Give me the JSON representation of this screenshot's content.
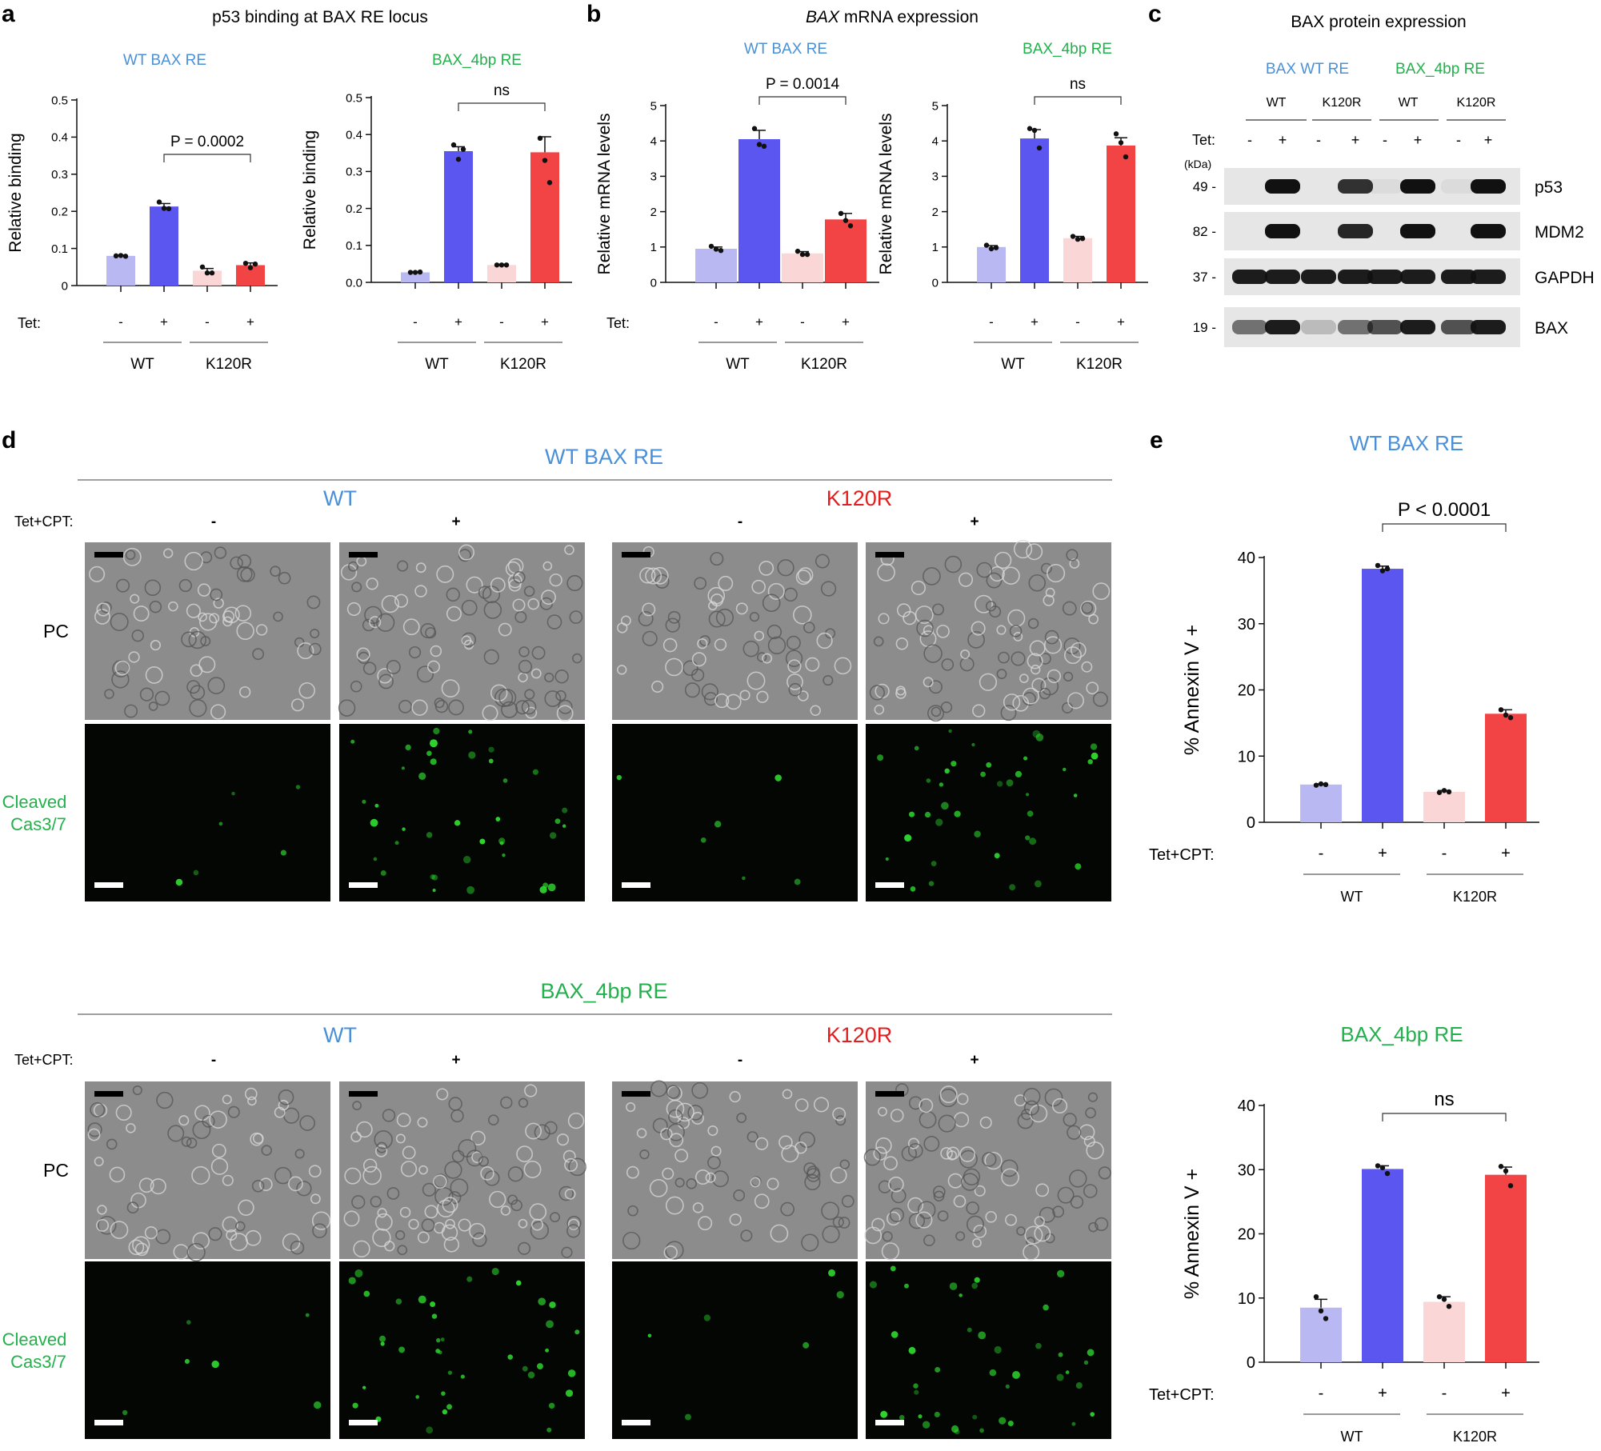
{
  "colors": {
    "blue": "#4a90d9",
    "green": "#22b14c",
    "red": "#e02020",
    "wt_bar": "#5b56f0",
    "wt_light": "#b9b8f3",
    "mut_bar": "#f24444",
    "mut_light": "#fad6d6"
  },
  "panels": {
    "a": "a",
    "b": "b",
    "c": "c",
    "d": "d",
    "e": "e"
  },
  "panel_a": {
    "title": "p53 binding at BAX RE locus"
  },
  "panel_b": {
    "title_italic": "BAX",
    "title_rest": " mRNA expression"
  },
  "panel_c": {
    "title": "BAX protein expression",
    "groups": [
      "BAX WT RE",
      "BAX_4bp RE"
    ],
    "sub": [
      "WT",
      "K120R",
      "WT",
      "K120R"
    ],
    "tet_label": "Tet:",
    "tet": [
      "-",
      "+",
      "-",
      "+",
      "-",
      "+",
      "-",
      "+"
    ],
    "kda": "(kDa)",
    "rows": [
      {
        "kda": "49 -",
        "name": "p53"
      },
      {
        "kda": "82 -",
        "name": "MDM2"
      },
      {
        "kda": "37 -",
        "name": "GAPDH"
      },
      {
        "kda": "19 -",
        "name": "BAX"
      }
    ]
  },
  "panel_d": {
    "sections": [
      {
        "title": "WT BAX RE"
      },
      {
        "title": "BAX_4bp RE"
      }
    ],
    "wt": "WT",
    "mut": "K120R",
    "tet_label": "Tet+CPT:",
    "minus": "-",
    "plus": "+",
    "row_pc": "PC",
    "row_fl_1": "Cleaved",
    "row_fl_2": "Cas3/7"
  },
  "x_labels": {
    "tet": "Tet:",
    "tetcpt": "Tet+CPT:",
    "minus": "-",
    "plus": "+",
    "wt": "WT",
    "mut": "K120R"
  },
  "chart_data": [
    {
      "id": "a1",
      "type": "bar",
      "title": "WT BAX RE",
      "ylabel": "Relative binding",
      "ylim": [
        0,
        0.5
      ],
      "yticks": [
        "0",
        "0.1",
        "0.2",
        "0.3",
        "0.4",
        "0.5"
      ],
      "categories": [
        "WT -",
        "WT +",
        "K120R -",
        "K120R +"
      ],
      "values": [
        0.08,
        0.213,
        0.04,
        0.055
      ],
      "errors": [
        0.002,
        0.008,
        0.006,
        0.006
      ],
      "points": [
        [
          0.08,
          0.081,
          0.079
        ],
        [
          0.225,
          0.208,
          0.207
        ],
        [
          0.05,
          0.034,
          0.034
        ],
        [
          0.06,
          0.048,
          0.058
        ]
      ],
      "comparison": "P = 0.0002",
      "xgroup_label": "Tet:"
    },
    {
      "id": "a2",
      "type": "bar",
      "title": "BAX_4bp RE",
      "ylabel": "Relative binding",
      "ylim": [
        0,
        0.5
      ],
      "yticks": [
        "0.0",
        "0.1",
        "0.2",
        "0.3",
        "0.4",
        "0.5"
      ],
      "categories": [
        "WT -",
        "WT +",
        "K120R -",
        "K120R +"
      ],
      "values": [
        0.027,
        0.355,
        0.047,
        0.352
      ],
      "errors": [
        0.001,
        0.012,
        0.002,
        0.042
      ],
      "points": [
        [
          0.027,
          0.027,
          0.028
        ],
        [
          0.372,
          0.333,
          0.36
        ],
        [
          0.047,
          0.047,
          0.047
        ],
        [
          0.39,
          0.33,
          0.27
        ]
      ],
      "comparison": "ns"
    },
    {
      "id": "b1",
      "type": "bar",
      "title": "WT BAX RE",
      "ylabel": "Relative mRNA levels",
      "ylim": [
        0,
        5
      ],
      "yticks": [
        "0",
        "1",
        "2",
        "3",
        "4",
        "5"
      ],
      "categories": [
        "WT -",
        "WT +",
        "K120R -",
        "K120R +"
      ],
      "values": [
        0.95,
        4.05,
        0.82,
        1.78
      ],
      "errors": [
        0.05,
        0.25,
        0.05,
        0.17
      ],
      "points": [
        [
          1.02,
          0.94,
          0.9
        ],
        [
          4.35,
          3.9,
          3.85
        ],
        [
          0.88,
          0.79,
          0.79
        ],
        [
          1.95,
          1.75,
          1.6
        ]
      ],
      "comparison": "P = 0.0014",
      "xgroup_label": "Tet:"
    },
    {
      "id": "b2",
      "type": "bar",
      "title": "BAX_4bp RE",
      "ylabel": "Relative mRNA levels",
      "ylim": [
        0,
        5
      ],
      "yticks": [
        "0",
        "1",
        "2",
        "3",
        "4",
        "5"
      ],
      "categories": [
        "WT -",
        "WT +",
        "K120R -",
        "K120R +"
      ],
      "values": [
        1.0,
        4.07,
        1.25,
        3.87
      ],
      "errors": [
        0.04,
        0.25,
        0.05,
        0.22
      ],
      "points": [
        [
          1.05,
          0.95,
          0.98
        ],
        [
          4.35,
          4.3,
          3.8
        ],
        [
          1.3,
          1.22,
          1.24
        ],
        [
          4.2,
          3.95,
          3.55
        ]
      ],
      "comparison": "ns"
    },
    {
      "id": "e1",
      "type": "bar",
      "title": "WT BAX RE",
      "ylabel": "% Annexin V +",
      "ylim": [
        0,
        40
      ],
      "yticks": [
        "0",
        "10",
        "20",
        "30",
        "40"
      ],
      "categories": [
        "WT -",
        "WT +",
        "K120R -",
        "K120R +"
      ],
      "values": [
        5.7,
        38.3,
        4.6,
        16.4
      ],
      "errors": [
        0.1,
        0.4,
        0.2,
        0.6
      ],
      "points": [
        [
          5.6,
          5.8,
          5.7
        ],
        [
          38.8,
          38.0,
          38.3
        ],
        [
          4.5,
          4.8,
          4.6
        ],
        [
          17.0,
          16.2,
          15.8
        ]
      ],
      "comparison": "P < 0.0001",
      "xgroup_label": "Tet+CPT:"
    },
    {
      "id": "e2",
      "type": "bar",
      "title": "BAX_4bp RE",
      "ylabel": "% Annexin V +",
      "ylim": [
        0,
        40
      ],
      "yticks": [
        "0",
        "10",
        "20",
        "30",
        "40"
      ],
      "categories": [
        "WT -",
        "WT +",
        "K120R -",
        "K120R +"
      ],
      "values": [
        8.5,
        30.1,
        9.4,
        29.2
      ],
      "errors": [
        1.3,
        0.5,
        0.8,
        1.2
      ],
      "points": [
        [
          10.2,
          8.0,
          6.8
        ],
        [
          30.6,
          30.3,
          29.4
        ],
        [
          10.2,
          9.8,
          8.7
        ],
        [
          30.5,
          29.8,
          27.5
        ]
      ],
      "comparison": "ns",
      "xgroup_label": "Tet+CPT:"
    }
  ]
}
